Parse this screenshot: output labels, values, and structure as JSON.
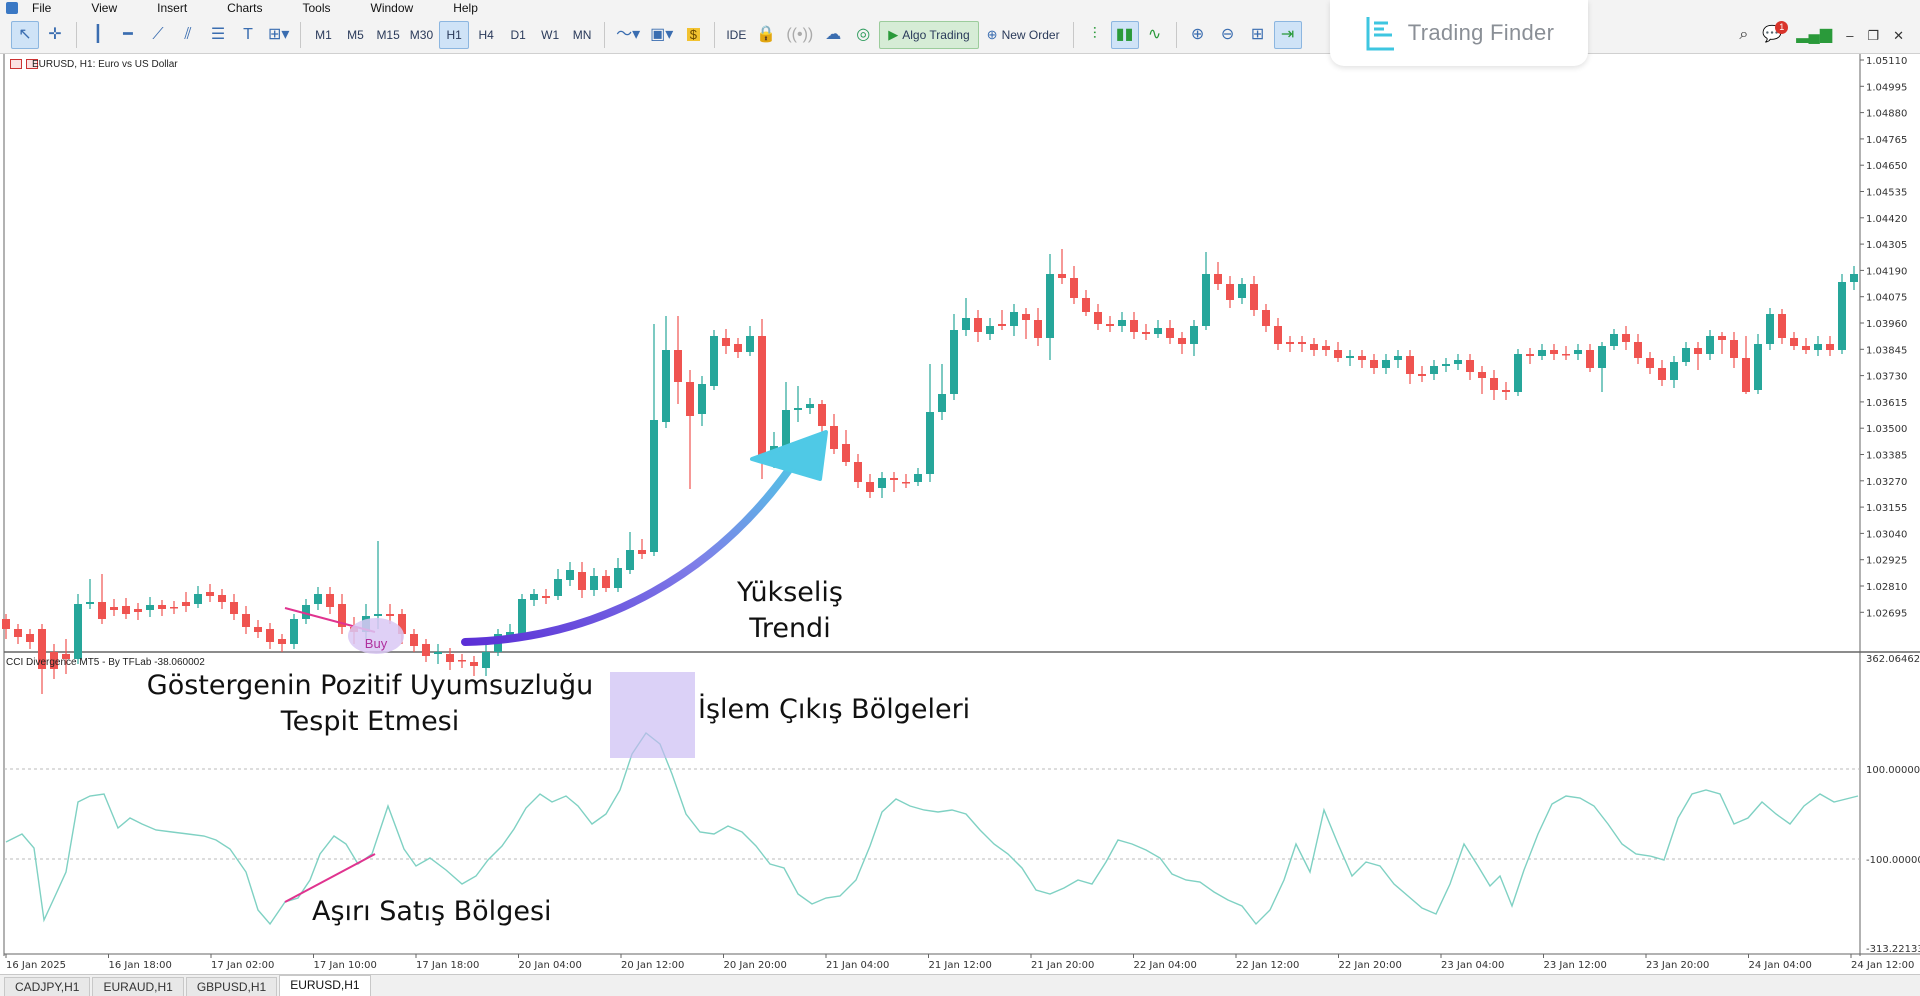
{
  "menu": [
    "File",
    "View",
    "Insert",
    "Charts",
    "Tools",
    "Window",
    "Help"
  ],
  "toolbar": {
    "timeframes": [
      "M1",
      "M5",
      "M15",
      "M30",
      "H1",
      "H4",
      "D1",
      "W1",
      "MN"
    ],
    "active_timeframe": "H1",
    "ide_label": "IDE",
    "algo_trading_label": "Algo Trading",
    "new_order_label": "New Order",
    "notification_count": "1"
  },
  "logo": {
    "text": "Trading Finder"
  },
  "chart": {
    "symbol_label": "EURUSD, H1:  Euro vs US Dollar",
    "indicator_label": "CCI Divergence MT5 - By TFLab -38.060002",
    "buy_label": "Buy",
    "price_ticks": [
      "1.05110",
      "1.04995",
      "1.04880",
      "1.04765",
      "1.04650",
      "1.04535",
      "1.04420",
      "1.04305",
      "1.04190",
      "1.04075",
      "1.03960",
      "1.03845",
      "1.03730",
      "1.03615",
      "1.03500",
      "1.03385",
      "1.03270",
      "1.03155",
      "1.03040",
      "1.02925",
      "1.02810",
      "1.02695"
    ],
    "indicator_ticks": [
      "362.064620",
      "100.000000",
      "-100.000000",
      "-313.22133"
    ],
    "time_ticks": [
      "16 Jan 2025",
      "16 Jan 18:00",
      "17 Jan 02:00",
      "17 Jan 10:00",
      "17 Jan 18:00",
      "20 Jan 04:00",
      "20 Jan 12:00",
      "20 Jan 20:00",
      "21 Jan 04:00",
      "21 Jan 12:00",
      "21 Jan 20:00",
      "22 Jan 04:00",
      "22 Jan 12:00",
      "22 Jan 20:00",
      "23 Jan 04:00",
      "23 Jan 12:00",
      "23 Jan 20:00",
      "24 Jan 04:00",
      "24 Jan 12:00"
    ],
    "bull_color": "#26a69a",
    "bear_color": "#ef5350",
    "cci_color": "#7fd1c3",
    "divergence_color": "#e0338f",
    "arrow_color_start": "#5b2fd6",
    "arrow_color_end": "#4fc9e6"
  },
  "annotations": {
    "yukselis": "Yükseliş\nTrendi",
    "gosterge": "Göstergenin Pozitif Uyumsuzluğu\nTespit Etmesi",
    "islem": "İşlem Çıkış Bölgeleri",
    "asiri": "Aşırı Satış Bölgesi"
  },
  "tabs": [
    "CADJPY,H1",
    "EURAUD,H1",
    "GBPUSD,H1",
    "EURUSD,H1"
  ],
  "active_tab": "EURUSD,H1"
}
